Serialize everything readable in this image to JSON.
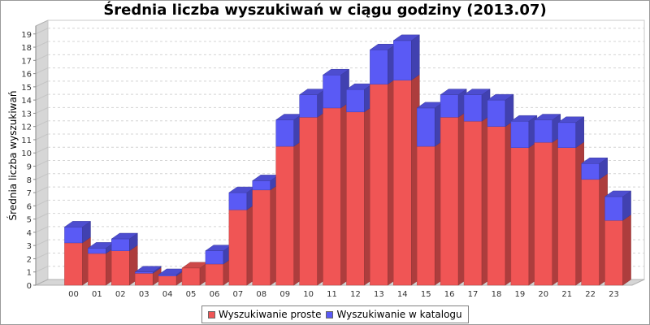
{
  "chart_data": {
    "type": "bar",
    "stacked": true,
    "title": "Średnia liczba wyszukiwań w ciągu godziny (2013.07)",
    "xlabel": "",
    "ylabel": "Średnia liczba wyszukiwań",
    "ylim": [
      0,
      19.6
    ],
    "yticks": [
      0,
      1,
      2,
      3,
      4,
      5,
      6,
      7,
      8,
      9,
      10,
      11,
      12,
      13,
      14,
      15,
      16,
      17,
      18,
      19
    ],
    "categories": [
      "00",
      "01",
      "02",
      "03",
      "04",
      "05",
      "06",
      "07",
      "08",
      "09",
      "10",
      "11",
      "12",
      "13",
      "14",
      "15",
      "16",
      "17",
      "18",
      "19",
      "20",
      "21",
      "22",
      "23"
    ],
    "series": [
      {
        "name": "Wyszukiwanie proste",
        "color": "#f05555",
        "values": [
          3.2,
          2.4,
          2.6,
          0.9,
          0.7,
          1.3,
          1.6,
          5.7,
          7.2,
          10.5,
          12.7,
          13.4,
          13.1,
          15.2,
          15.5,
          10.5,
          12.7,
          12.4,
          12.0,
          10.4,
          10.8,
          10.4,
          8.0,
          4.9
        ]
      },
      {
        "name": "Wyszukiwanie w katalogu",
        "color": "#5a5af5",
        "values": [
          1.2,
          0.4,
          0.9,
          0.1,
          0.1,
          0.0,
          1.0,
          1.3,
          0.7,
          2.0,
          1.7,
          2.5,
          1.7,
          2.6,
          3.0,
          2.9,
          1.7,
          2.0,
          2.0,
          2.0,
          1.7,
          1.9,
          1.2,
          1.8
        ]
      }
    ],
    "grid": true,
    "legend_position": "bottom"
  }
}
